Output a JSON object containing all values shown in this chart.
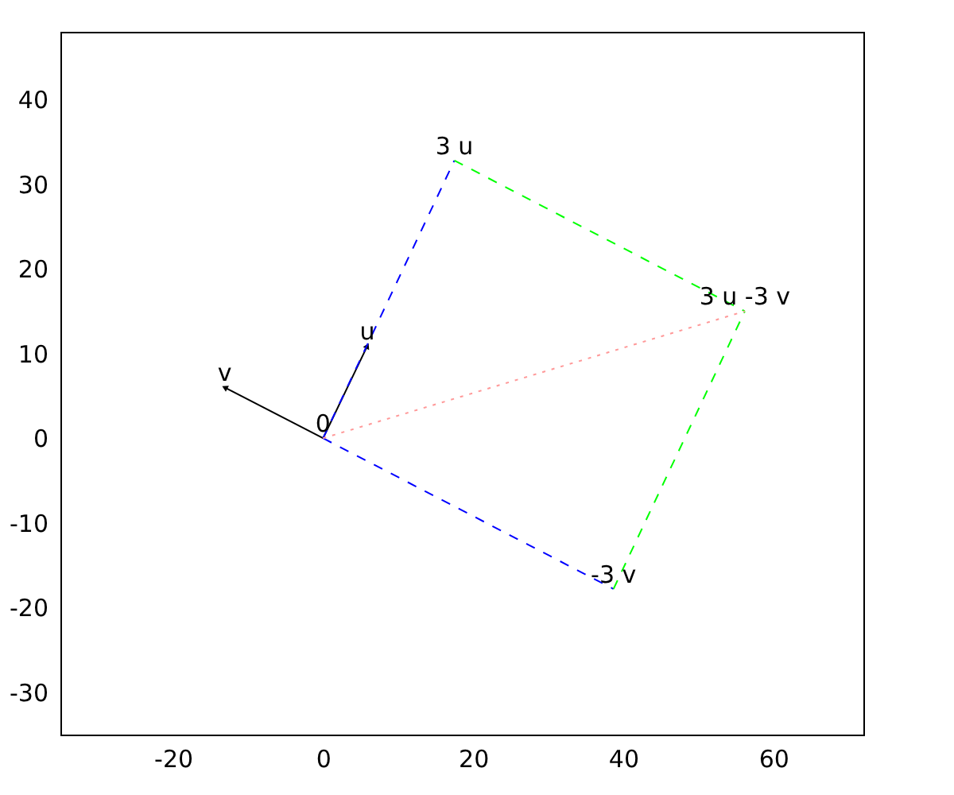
{
  "chart_data": {
    "type": "line",
    "xlim": [
      -35,
      72
    ],
    "ylim": [
      -35,
      48
    ],
    "xticks": [
      -20,
      0,
      20,
      40,
      60
    ],
    "yticks": [
      -30,
      -20,
      -10,
      0,
      10,
      20,
      30,
      40
    ],
    "grid": false,
    "series": [
      {
        "x": [
          0,
          5.9
        ],
        "values": [
          0,
          10.9
        ],
        "color": "#000000",
        "line_style": "solid",
        "marker": "triangle"
      },
      {
        "x": [
          0,
          -13.1
        ],
        "values": [
          0,
          6.0
        ],
        "color": "#000000",
        "line_style": "solid",
        "marker": "triangle"
      },
      {
        "x": [
          0,
          17.5
        ],
        "values": [
          0,
          32.8
        ],
        "color": "#0000ff",
        "line_style": "dashed"
      },
      {
        "x": [
          0,
          38.7
        ],
        "values": [
          0,
          -17.8
        ],
        "color": "#0000ff",
        "line_style": "dashed"
      },
      {
        "x": [
          17.5,
          56.2
        ],
        "values": [
          32.8,
          15.0
        ],
        "color": "#00ff00",
        "line_style": "dashed"
      },
      {
        "x": [
          38.7,
          56.2
        ],
        "values": [
          -17.8,
          15.0
        ],
        "color": "#00ff00",
        "line_style": "dashed"
      },
      {
        "x": [
          0,
          56.2
        ],
        "values": [
          0,
          15.0
        ],
        "color": "#ff9999",
        "line_style": "dotted"
      }
    ],
    "annotations": [
      {
        "text": "u",
        "x": 5.9,
        "y": 10.9
      },
      {
        "text": "v",
        "x": -13.1,
        "y": 6.0
      },
      {
        "text": "0",
        "x": 0,
        "y": 0
      },
      {
        "text": "3 u",
        "x": 17.5,
        "y": 32.8
      },
      {
        "text": "-3 v",
        "x": 38.7,
        "y": -17.8
      },
      {
        "text": "3 u -3 v",
        "x": 56.2,
        "y": 15.0
      }
    ]
  }
}
